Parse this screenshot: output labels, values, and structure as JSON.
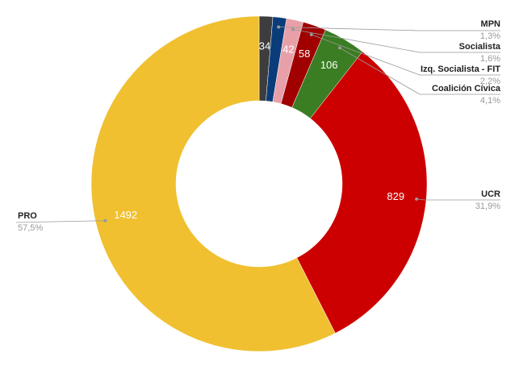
{
  "chart_data": {
    "type": "donut",
    "categories": [
      null,
      "MPN",
      "Socialista",
      "Izq. Socialista - FIT",
      "Coalición Cívica",
      "UCR",
      "PRO"
    ],
    "values": [
      34,
      34,
      42,
      58,
      106,
      829,
      1492
    ],
    "value_labels": [
      "34",
      null,
      "42",
      "58",
      "106",
      "829",
      "1492"
    ],
    "percent_labels": [
      null,
      "1,3%",
      "1,6%",
      "2,2%",
      "4,1%",
      "31,9%",
      "57,5%"
    ],
    "colors": [
      "#3d3d3d",
      "#0b3c7a",
      "#e8a0a8",
      "#a00000",
      "#3a7d22",
      "#cc0000",
      "#f0c030"
    ]
  }
}
